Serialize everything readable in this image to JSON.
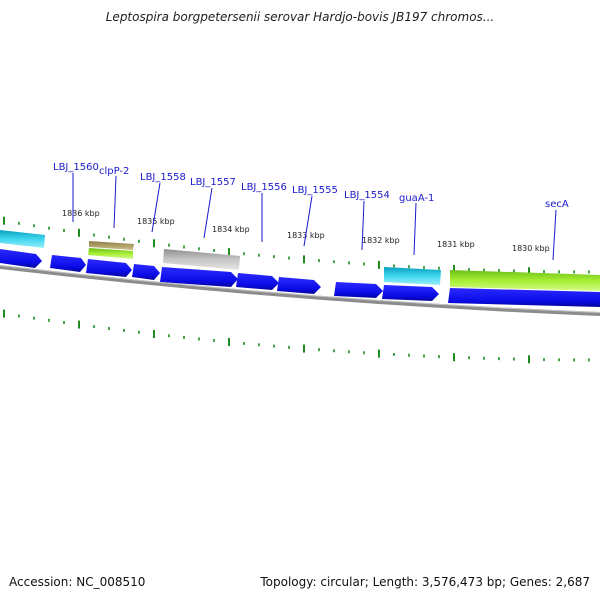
{
  "title": "Leptospira borgpetersenii serovar Hardjo-bovis JB197 chromos...",
  "footer": {
    "accession": "Accession: NC_008510",
    "summary": "Topology: circular; Length: 3,576,473 bp; Genes: 2,687"
  },
  "colors": {
    "forward_gene": "#0a0ae6",
    "cyan_feature": "#1ec8e6",
    "green_feature": "#9be62d",
    "olive_feature": "#b4a46a",
    "gray_feature": "#bdbdbd",
    "backbone": "#8c8c8c",
    "tick": "#1e8c1e",
    "label": "#1a1acc"
  },
  "kbp_ticks": [
    "1836 kbp",
    "1835 kbp",
    "1834 kbp",
    "1833 kbp",
    "1832 kbp",
    "1831 kbp",
    "1830 kbp"
  ],
  "gene_labels": [
    "LBJ_1560",
    "clpP-2",
    "LBJ_1558",
    "LBJ_1557",
    "LBJ_1556",
    "LBJ_1555",
    "LBJ_1554",
    "guaA-1",
    "secA"
  ]
}
